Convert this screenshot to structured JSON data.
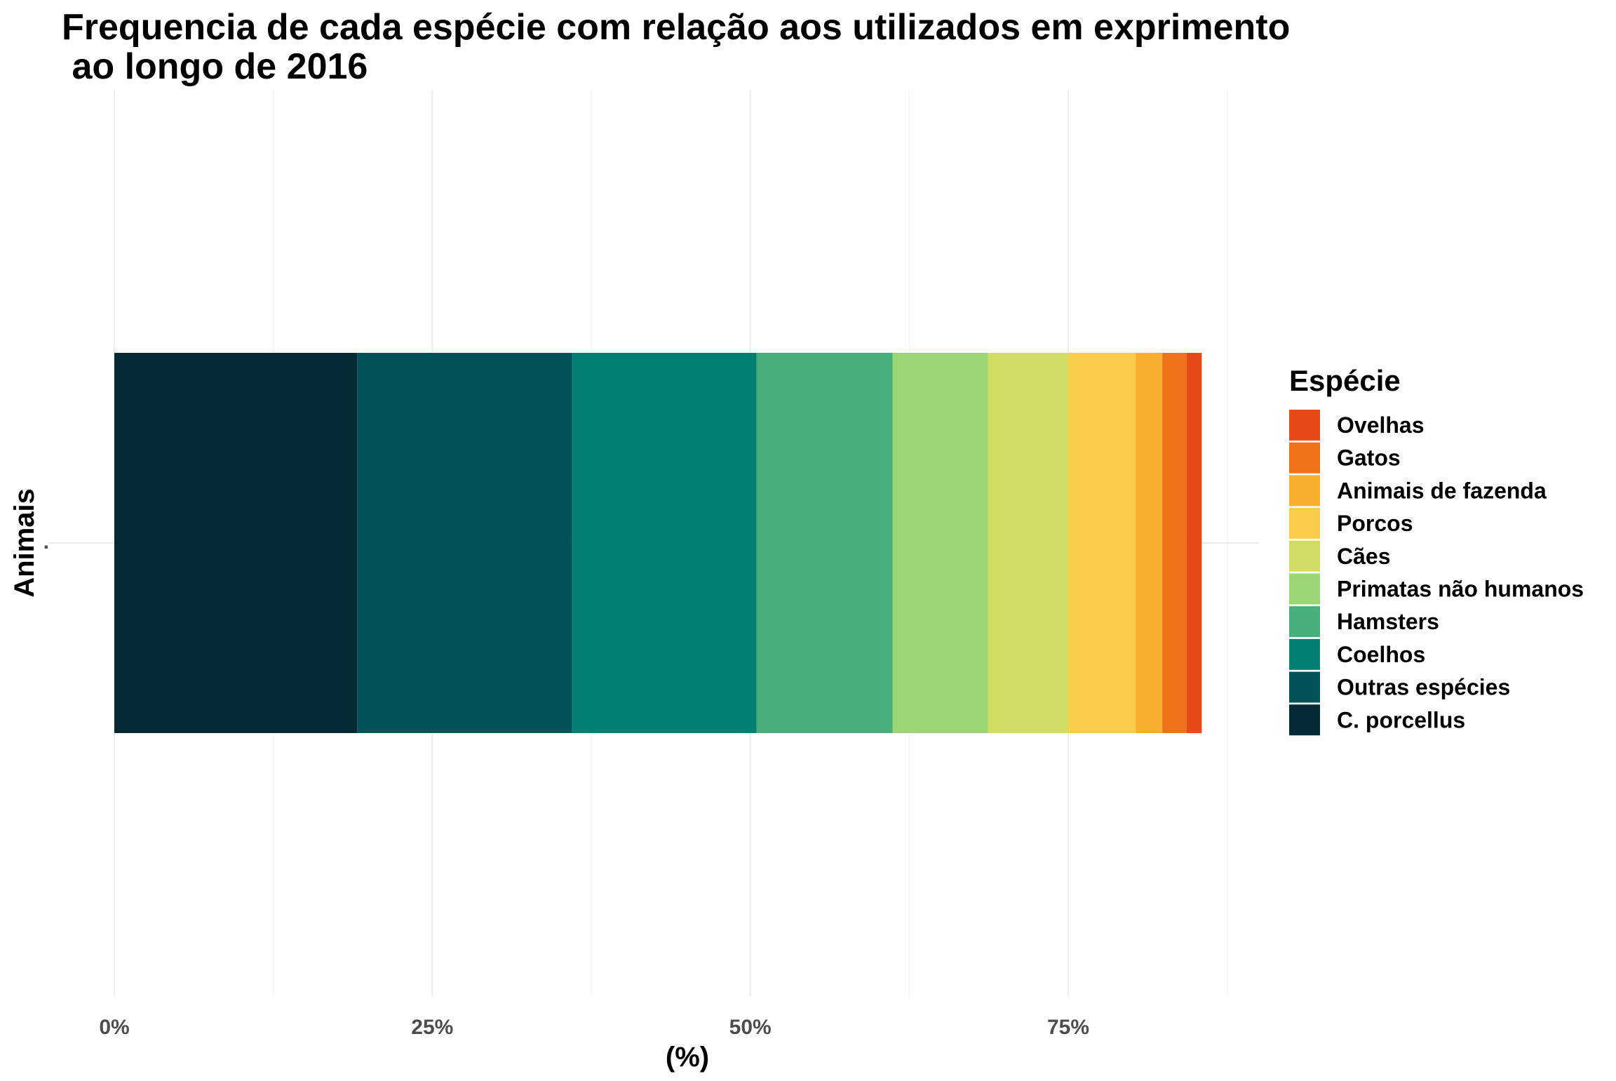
{
  "chart_data": {
    "type": "bar",
    "orientation": "horizontal",
    "stacked": true,
    "title": "Frequencia de cada espécie com relação aos utilizados em exprimento\n ao longo de 2016",
    "xlabel": "(%)",
    "ylabel": "Animais",
    "categories": [
      "."
    ],
    "xlim": [
      0,
      0.9
    ],
    "x_ticks": [
      0,
      0.25,
      0.5,
      0.75
    ],
    "x_tick_labels": [
      "0%",
      "25%",
      "50%",
      "75%"
    ],
    "grid": true,
    "legend": {
      "title": "Espécie",
      "position": "right",
      "order": [
        "Ovelhas",
        "Gatos",
        "Animais de fazenda",
        "Porcos",
        "Cães",
        "Primatas não humanos",
        "Hamsters",
        "Coelhos",
        "Outras espécies",
        "C. porcellus"
      ]
    },
    "series": [
      {
        "name": "C. porcellus",
        "values": [
          0.191
        ],
        "color": "#052a36"
      },
      {
        "name": "Outras espécies",
        "values": [
          0.169
        ],
        "color": "#02525b"
      },
      {
        "name": "Coelhos",
        "values": [
          0.145
        ],
        "color": "#037f73"
      },
      {
        "name": "Hamsters",
        "values": [
          0.107
        ],
        "color": "#48ae7b"
      },
      {
        "name": "Primatas não humanos",
        "values": [
          0.075
        ],
        "color": "#9ad674"
      },
      {
        "name": "Cães",
        "values": [
          0.063
        ],
        "color": "#d1dc62"
      },
      {
        "name": "Porcos",
        "values": [
          0.053
        ],
        "color": "#f9cd4a"
      },
      {
        "name": "Animais de fazenda",
        "values": [
          0.021
        ],
        "color": "#f6b02d"
      },
      {
        "name": "Gatos",
        "values": [
          0.019
        ],
        "color": "#ef7119"
      },
      {
        "name": "Ovelhas",
        "values": [
          0.012
        ],
        "color": "#e64a19"
      }
    ]
  }
}
